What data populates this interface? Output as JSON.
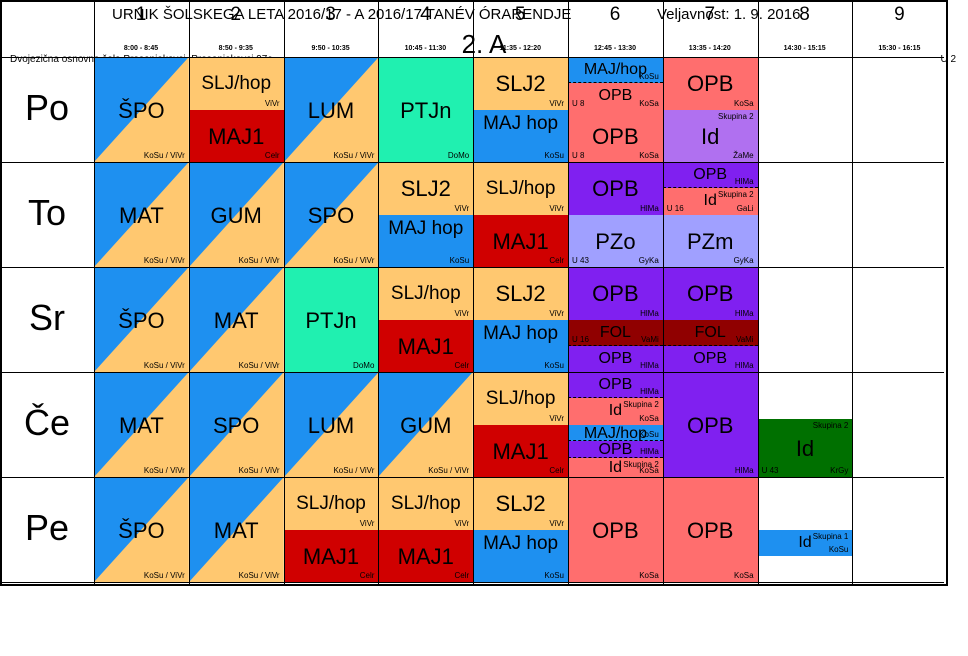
{
  "header": {
    "title_left": "URNIK ŠOLSKEGA LETA 2016/17 - A 2016/17 TANÉV ÓRARENDJE",
    "title_right": "Veljavnost: 1. 9. 2016",
    "class_name": "2. A",
    "school": "Dvojezična osnovna šola Prosenjakovci, Prosenjakovci 97c",
    "room": "U 2"
  },
  "colors": {
    "blue": "#1E90F0",
    "orange": "#FFC870",
    "teal": "#20F0B0",
    "red": "#D00000",
    "salmon": "#FF6E6E",
    "purple": "#8020F0",
    "lilac": "#B070F0",
    "periwinkle": "#A0A0FF",
    "darkred": "#900000",
    "green": "#007000"
  },
  "periods": [
    {
      "num": "1",
      "time": "8:00 - 8:45"
    },
    {
      "num": "2",
      "time": "8:50 - 9:35"
    },
    {
      "num": "3",
      "time": "9:50 - 10:35"
    },
    {
      "num": "4",
      "time": "10:45 - 11:30"
    },
    {
      "num": "5",
      "time": "11:35 - 12:20"
    },
    {
      "num": "6",
      "time": "12:45 - 13:30"
    },
    {
      "num": "7",
      "time": "13:35 - 14:20"
    },
    {
      "num": "8",
      "time": "14:30 - 15:15"
    },
    {
      "num": "9",
      "time": "15:30 - 16:15"
    }
  ],
  "days": [
    "Po",
    "To",
    "Sr",
    "Če",
    "Pe"
  ],
  "lessons": [
    {
      "d": 0,
      "p": 0,
      "y0": 0,
      "y1": 1,
      "color": "blue",
      "color2": "orange",
      "diag": true,
      "subject": "ŠPO",
      "teacher": "KoSu / ViVr"
    },
    {
      "d": 0,
      "p": 1,
      "y0": 0,
      "y1": 0.5,
      "color": "orange",
      "subject": "SLJ/hop",
      "teacher": "ViVr"
    },
    {
      "d": 0,
      "p": 1,
      "y0": 0.5,
      "y1": 1,
      "color": "red",
      "subject": "MAJ1",
      "teacher": "Celr"
    },
    {
      "d": 0,
      "p": 2,
      "y0": 0,
      "y1": 1,
      "color": "blue",
      "color2": "orange",
      "diag": true,
      "subject": "LUM",
      "teacher": "KoSu / ViVr"
    },
    {
      "d": 0,
      "p": 3,
      "y0": 0,
      "y1": 1,
      "color": "teal",
      "subject": "PTJn",
      "teacher": "DoMo"
    },
    {
      "d": 0,
      "p": 4,
      "y0": 0,
      "y1": 0.5,
      "color": "orange",
      "subject": "SLJ2",
      "teacher": "ViVr"
    },
    {
      "d": 0,
      "p": 4,
      "y0": 0.5,
      "y1": 1,
      "color": "blue",
      "subject": "MAJ hop",
      "teacher": "KoSu"
    },
    {
      "d": 0,
      "p": 5,
      "y0": 0,
      "y1": 0.25,
      "color": "blue",
      "subject": "MAJ/hop",
      "teacher": "KoSu",
      "dash": true
    },
    {
      "d": 0,
      "p": 5,
      "y0": 0.25,
      "y1": 0.5,
      "color": "salmon",
      "subject": "OPB",
      "teacher": "KoSa",
      "room": "U 8"
    },
    {
      "d": 0,
      "p": 5,
      "y0": 0.5,
      "y1": 1,
      "color": "salmon",
      "subject": "OPB",
      "teacher": "KoSa",
      "room": "U 8"
    },
    {
      "d": 0,
      "p": 6,
      "y0": 0,
      "y1": 0.5,
      "color": "salmon",
      "subject": "OPB",
      "teacher": "KoSa"
    },
    {
      "d": 0,
      "p": 6,
      "y0": 0.5,
      "y1": 1,
      "color": "lilac",
      "subject": "Id",
      "teacher": "ŽaMe",
      "group": "Skupina 2"
    },
    {
      "d": 1,
      "p": 0,
      "y0": 0,
      "y1": 1,
      "color": "blue",
      "color2": "orange",
      "diag": true,
      "subject": "MAT",
      "teacher": "KoSu / ViVr"
    },
    {
      "d": 1,
      "p": 1,
      "y0": 0,
      "y1": 1,
      "color": "blue",
      "color2": "orange",
      "diag": true,
      "subject": "GUM",
      "teacher": "KoSu / ViVr"
    },
    {
      "d": 1,
      "p": 2,
      "y0": 0,
      "y1": 1,
      "color": "blue",
      "color2": "orange",
      "diag": true,
      "subject": "SPO",
      "teacher": "KoSu / ViVr"
    },
    {
      "d": 1,
      "p": 3,
      "y0": 0,
      "y1": 0.5,
      "color": "orange",
      "subject": "SLJ2",
      "teacher": "ViVr"
    },
    {
      "d": 1,
      "p": 3,
      "y0": 0.5,
      "y1": 1,
      "color": "blue",
      "subject": "MAJ hop",
      "teacher": "KoSu"
    },
    {
      "d": 1,
      "p": 4,
      "y0": 0,
      "y1": 0.5,
      "color": "orange",
      "subject": "SLJ/hop",
      "teacher": "ViVr"
    },
    {
      "d": 1,
      "p": 4,
      "y0": 0.5,
      "y1": 1,
      "color": "red",
      "subject": "MAJ1",
      "teacher": "Celr"
    },
    {
      "d": 1,
      "p": 5,
      "y0": 0,
      "y1": 0.5,
      "color": "purple",
      "subject": "OPB",
      "teacher": "HlMa"
    },
    {
      "d": 1,
      "p": 5,
      "y0": 0.5,
      "y1": 1,
      "color": "periwinkle",
      "subject": "PZo",
      "teacher": "GyKa",
      "room": "U 43"
    },
    {
      "d": 1,
      "p": 6,
      "y0": 0,
      "y1": 0.25,
      "color": "purple",
      "subject": "OPB",
      "teacher": "HlMa",
      "dash": true
    },
    {
      "d": 1,
      "p": 6,
      "y0": 0.25,
      "y1": 0.5,
      "color": "salmon",
      "subject": "Id",
      "teacher": "GaLi",
      "group": "Skupina 2",
      "room": "U 16"
    },
    {
      "d": 1,
      "p": 6,
      "y0": 0.5,
      "y1": 1,
      "color": "periwinkle",
      "subject": "PZm",
      "teacher": "GyKa"
    },
    {
      "d": 2,
      "p": 0,
      "y0": 0,
      "y1": 1,
      "color": "blue",
      "color2": "orange",
      "diag": true,
      "subject": "ŠPO",
      "teacher": "KoSu / ViVr"
    },
    {
      "d": 2,
      "p": 1,
      "y0": 0,
      "y1": 1,
      "color": "blue",
      "color2": "orange",
      "diag": true,
      "subject": "MAT",
      "teacher": "KoSu / ViVr"
    },
    {
      "d": 2,
      "p": 2,
      "y0": 0,
      "y1": 1,
      "color": "teal",
      "subject": "PTJn",
      "teacher": "DoMo"
    },
    {
      "d": 2,
      "p": 3,
      "y0": 0,
      "y1": 0.5,
      "color": "orange",
      "subject": "SLJ/hop",
      "teacher": "ViVr"
    },
    {
      "d": 2,
      "p": 3,
      "y0": 0.5,
      "y1": 1,
      "color": "red",
      "subject": "MAJ1",
      "teacher": "Celr"
    },
    {
      "d": 2,
      "p": 4,
      "y0": 0,
      "y1": 0.5,
      "color": "orange",
      "subject": "SLJ2",
      "teacher": "ViVr"
    },
    {
      "d": 2,
      "p": 4,
      "y0": 0.5,
      "y1": 1,
      "color": "blue",
      "subject": "MAJ hop",
      "teacher": "KoSu"
    },
    {
      "d": 2,
      "p": 5,
      "y0": 0,
      "y1": 0.5,
      "color": "purple",
      "subject": "OPB",
      "teacher": "HlMa"
    },
    {
      "d": 2,
      "p": 5,
      "y0": 0.5,
      "y1": 0.75,
      "color": "darkred",
      "subject": "FOL",
      "teacher": "VaMi",
      "room": "U 16",
      "dash": true
    },
    {
      "d": 2,
      "p": 5,
      "y0": 0.75,
      "y1": 1,
      "color": "purple",
      "subject": "OPB",
      "teacher": "HlMa"
    },
    {
      "d": 2,
      "p": 6,
      "y0": 0,
      "y1": 0.5,
      "color": "purple",
      "subject": "OPB",
      "teacher": "HlMa"
    },
    {
      "d": 2,
      "p": 6,
      "y0": 0.5,
      "y1": 0.75,
      "color": "darkred",
      "subject": "FOL",
      "teacher": "VaMi",
      "dash": true
    },
    {
      "d": 2,
      "p": 6,
      "y0": 0.75,
      "y1": 1,
      "color": "purple",
      "subject": "OPB",
      "teacher": "HlMa"
    },
    {
      "d": 3,
      "p": 0,
      "y0": 0,
      "y1": 1,
      "color": "blue",
      "color2": "orange",
      "diag": true,
      "subject": "MAT",
      "teacher": "KoSu / ViVr"
    },
    {
      "d": 3,
      "p": 1,
      "y0": 0,
      "y1": 1,
      "color": "blue",
      "color2": "orange",
      "diag": true,
      "subject": "SPO",
      "teacher": "KoSu / ViVr"
    },
    {
      "d": 3,
      "p": 2,
      "y0": 0,
      "y1": 1,
      "color": "blue",
      "color2": "orange",
      "diag": true,
      "subject": "LUM",
      "teacher": "KoSu / ViVr"
    },
    {
      "d": 3,
      "p": 3,
      "y0": 0,
      "y1": 1,
      "color": "blue",
      "color2": "orange",
      "diag": true,
      "subject": "GUM",
      "teacher": "KoSu / ViVr"
    },
    {
      "d": 3,
      "p": 4,
      "y0": 0,
      "y1": 0.5,
      "color": "orange",
      "subject": "SLJ/hop",
      "teacher": "ViVr"
    },
    {
      "d": 3,
      "p": 4,
      "y0": 0.5,
      "y1": 1,
      "color": "red",
      "subject": "MAJ1",
      "teacher": "Celr"
    },
    {
      "d": 3,
      "p": 5,
      "y0": 0,
      "y1": 0.25,
      "color": "purple",
      "subject": "OPB",
      "teacher": "HlMa",
      "dash": true
    },
    {
      "d": 3,
      "p": 5,
      "y0": 0.25,
      "y1": 0.5,
      "color": "salmon",
      "subject": "Id",
      "teacher": "KoSa",
      "group": "Skupina 2"
    },
    {
      "d": 3,
      "p": 5,
      "y0": 0.5,
      "y1": 0.66,
      "color": "blue",
      "subject": "MAJ/hop",
      "teacher": "KoSu",
      "dash": true
    },
    {
      "d": 3,
      "p": 5,
      "y0": 0.66,
      "y1": 0.82,
      "color": "purple",
      "subject": "OPB",
      "teacher": "HlMa",
      "dash": true
    },
    {
      "d": 3,
      "p": 5,
      "y0": 0.82,
      "y1": 1,
      "color": "salmon",
      "subject": "Id",
      "teacher": "KoSa",
      "group": "Skupina 2"
    },
    {
      "d": 3,
      "p": 6,
      "y0": 0,
      "y1": 1,
      "color": "purple",
      "subject": "OPB",
      "teacher": "HlMa"
    },
    {
      "d": 3,
      "p": 7,
      "y0": 0.45,
      "y1": 1,
      "color": "green",
      "subject": "Id",
      "teacher": "KrGy",
      "group": "Skupina 2",
      "room": "U 43"
    },
    {
      "d": 4,
      "p": 0,
      "y0": 0,
      "y1": 1,
      "color": "blue",
      "color2": "orange",
      "diag": true,
      "subject": "ŠPO",
      "teacher": "KoSu / ViVr"
    },
    {
      "d": 4,
      "p": 1,
      "y0": 0,
      "y1": 1,
      "color": "blue",
      "color2": "orange",
      "diag": true,
      "subject": "MAT",
      "teacher": "KoSu / ViVr"
    },
    {
      "d": 4,
      "p": 2,
      "y0": 0,
      "y1": 0.5,
      "color": "orange",
      "subject": "SLJ/hop",
      "teacher": "ViVr"
    },
    {
      "d": 4,
      "p": 2,
      "y0": 0.5,
      "y1": 1,
      "color": "red",
      "subject": "MAJ1",
      "teacher": "Celr"
    },
    {
      "d": 4,
      "p": 3,
      "y0": 0,
      "y1": 0.5,
      "color": "orange",
      "subject": "SLJ/hop",
      "teacher": "ViVr"
    },
    {
      "d": 4,
      "p": 3,
      "y0": 0.5,
      "y1": 1,
      "color": "red",
      "subject": "MAJ1",
      "teacher": "Celr"
    },
    {
      "d": 4,
      "p": 4,
      "y0": 0,
      "y1": 0.5,
      "color": "orange",
      "subject": "SLJ2",
      "teacher": "ViVr"
    },
    {
      "d": 4,
      "p": 4,
      "y0": 0.5,
      "y1": 1,
      "color": "blue",
      "subject": "MAJ hop",
      "teacher": "KoSu"
    },
    {
      "d": 4,
      "p": 5,
      "y0": 0,
      "y1": 1,
      "color": "salmon",
      "subject": "OPB",
      "teacher": "KoSa"
    },
    {
      "d": 4,
      "p": 6,
      "y0": 0,
      "y1": 1,
      "color": "salmon",
      "subject": "OPB",
      "teacher": "KoSa"
    },
    {
      "d": 4,
      "p": 7,
      "y0": 0.5,
      "y1": 0.75,
      "color": "blue",
      "subject": "Id",
      "teacher": "KoSu",
      "group": "Skupina 1"
    }
  ]
}
